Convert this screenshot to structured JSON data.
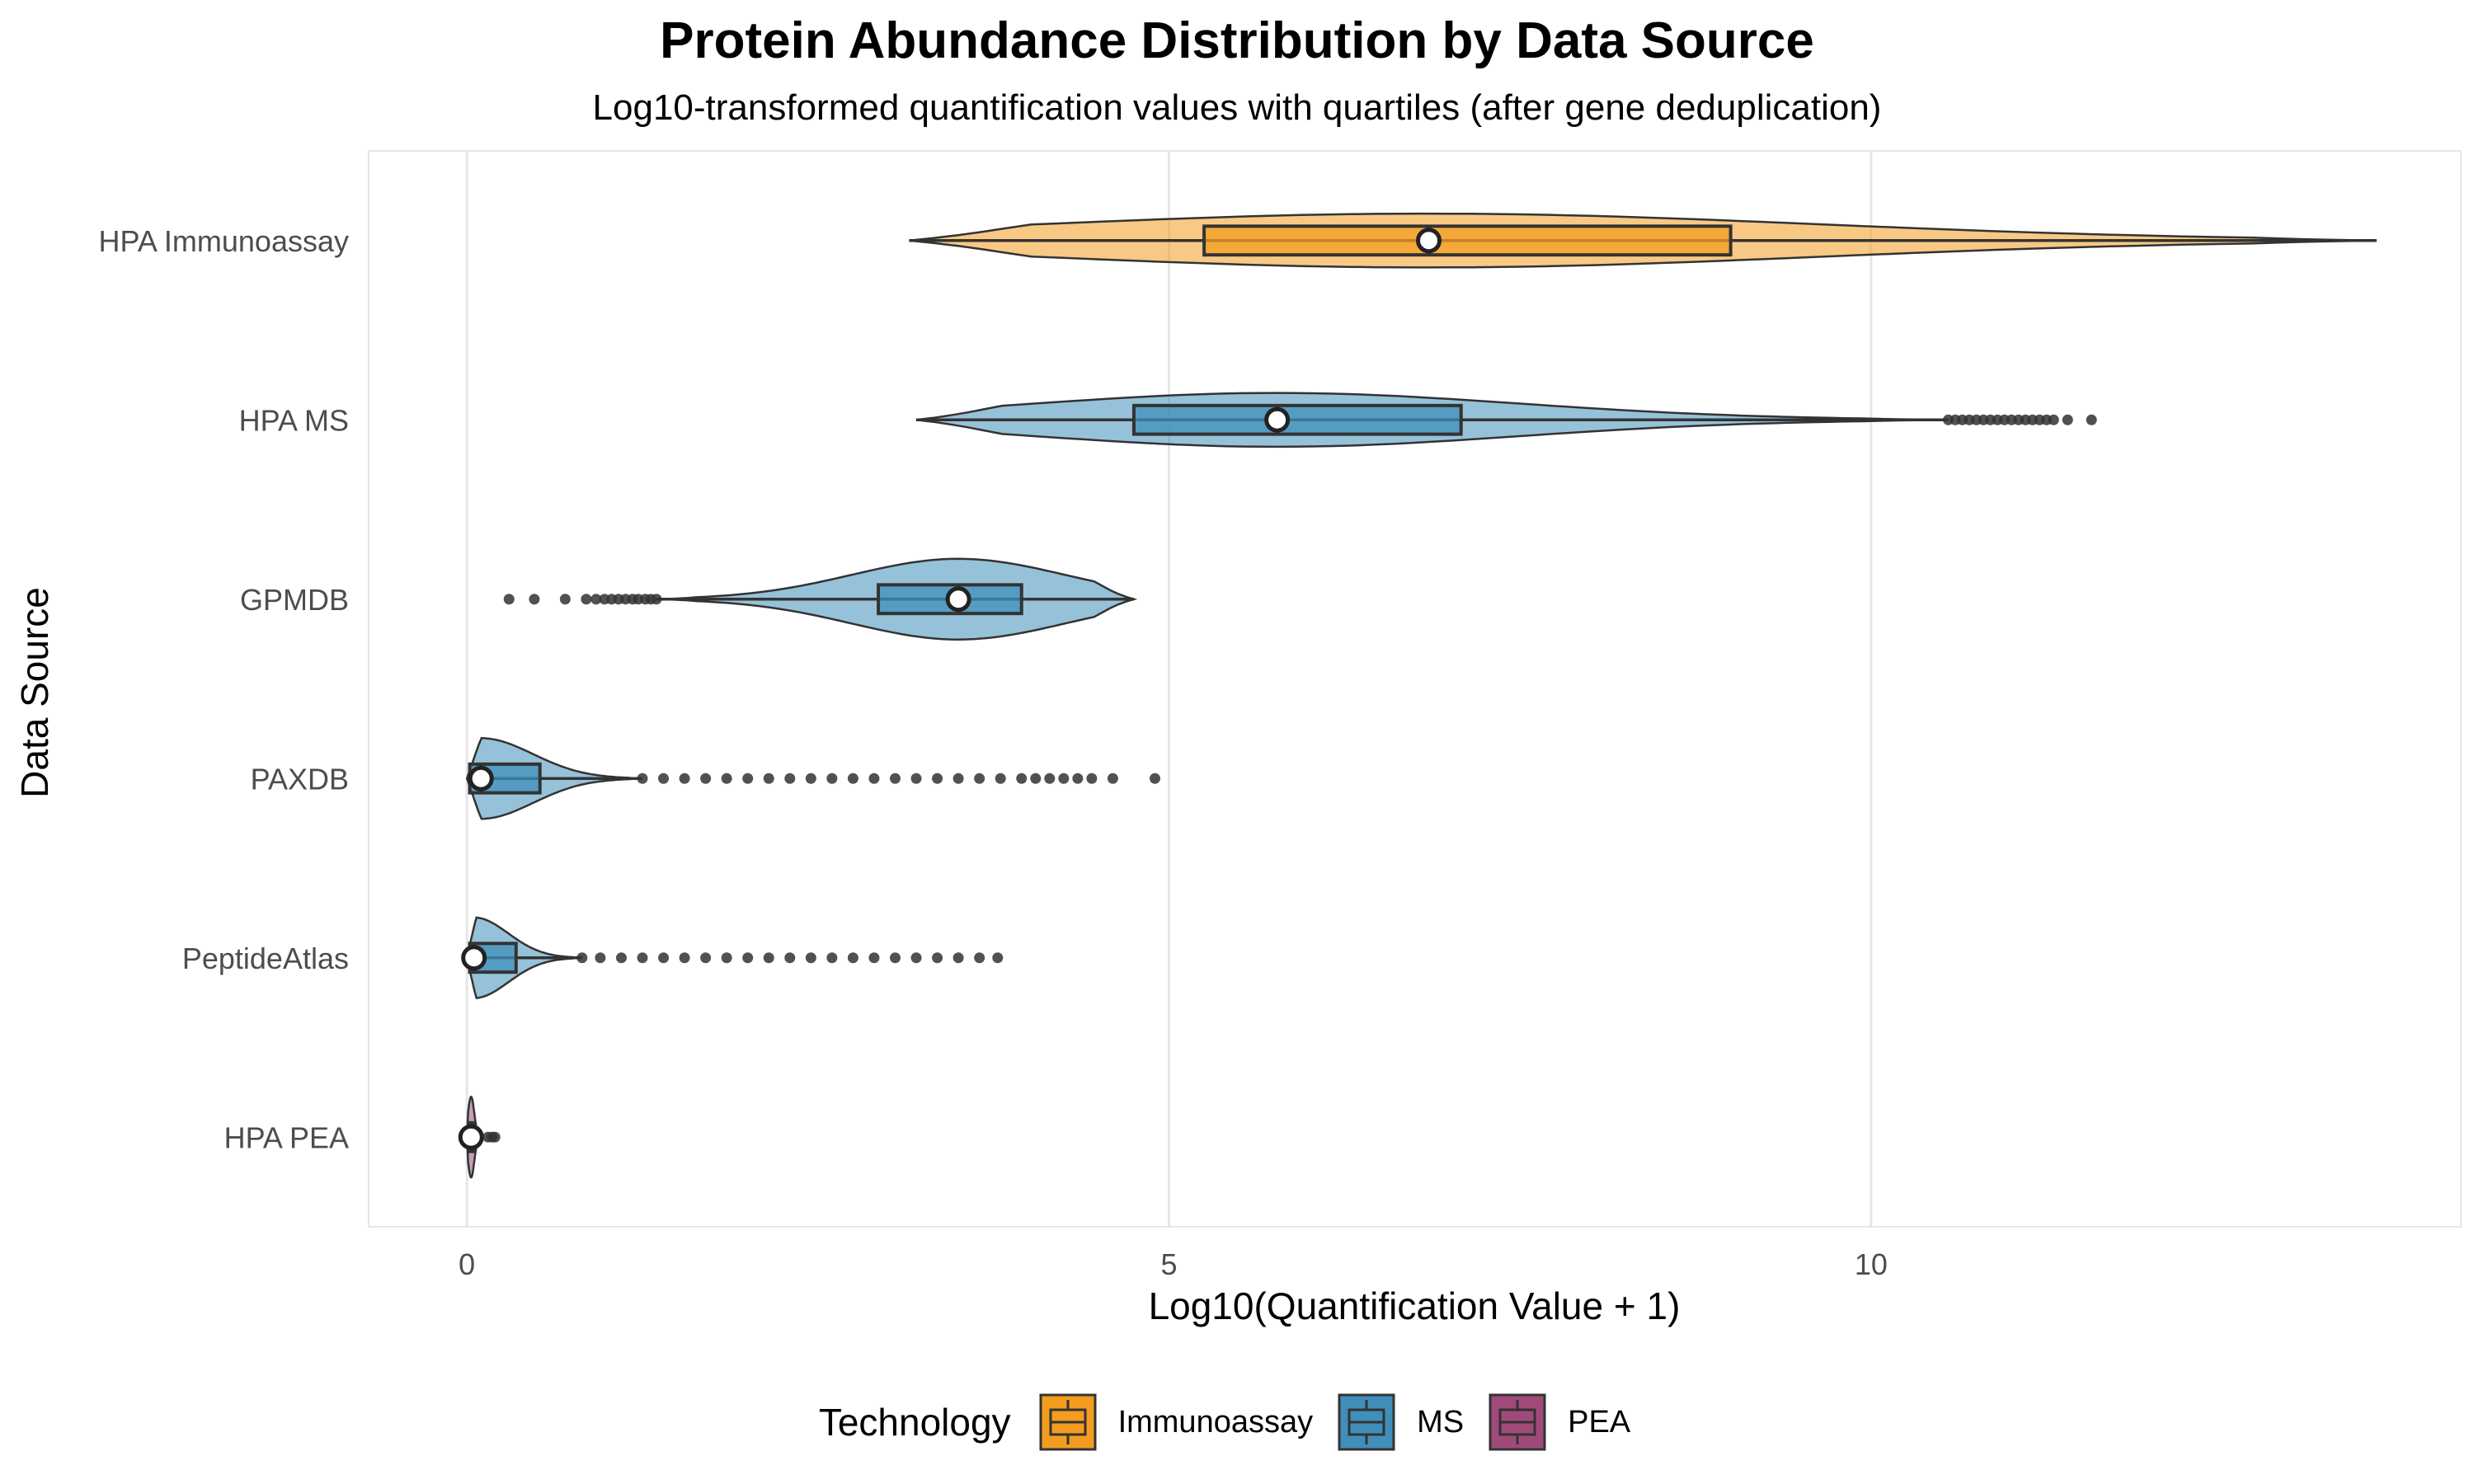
{
  "chart_data": {
    "type": "box",
    "title": "Protein Abundance Distribution by Data Source",
    "subtitle": "Log10-transformed quantification values with quartiles (after gene deduplication)",
    "xlabel": "Log10(Quantification Value + 1)",
    "ylabel": "Data Source",
    "xlim": [
      -0.7,
      14.2
    ],
    "xticks": [
      0,
      5,
      10
    ],
    "grid": true,
    "legend": {
      "title": "Technology",
      "position": "bottom",
      "items": [
        {
          "label": "Immunoassay",
          "color": "#f39c1f"
        },
        {
          "label": "MS",
          "color": "#3f8fba"
        },
        {
          "label": "PEA",
          "color": "#a04a7a"
        }
      ]
    },
    "series": [
      {
        "category": "HPA Immunoassay",
        "technology": "Immunoassay",
        "color": "#f39c1f",
        "whisker_low": 3.15,
        "q1": 5.25,
        "median": 6.85,
        "q3": 9.0,
        "whisker_high": 13.6,
        "violin_width": 0.3,
        "outliers": []
      },
      {
        "category": "HPA MS",
        "technology": "MS",
        "color": "#3f8fba",
        "whisker_low": 3.2,
        "q1": 4.75,
        "median": 5.77,
        "q3": 7.08,
        "whisker_high": 10.55,
        "violin_width": 0.3,
        "outliers": [
          10.55,
          10.6,
          10.65,
          10.7,
          10.75,
          10.8,
          10.85,
          10.9,
          10.95,
          11.0,
          11.05,
          11.1,
          11.15,
          11.2,
          11.25,
          11.3,
          11.4,
          11.57
        ]
      },
      {
        "category": "GPMDB",
        "technology": "MS",
        "color": "#3f8fba",
        "whisker_low": 1.35,
        "q1": 2.93,
        "median": 3.5,
        "q3": 3.95,
        "whisker_high": 4.75,
        "violin_width": 0.45,
        "outliers": [
          0.3,
          0.48,
          0.7,
          0.85,
          0.92,
          0.98,
          1.03,
          1.08,
          1.13,
          1.18,
          1.22,
          1.27,
          1.31,
          1.35
        ]
      },
      {
        "category": "PAXDB",
        "technology": "MS",
        "color": "#3f8fba",
        "whisker_low": 0.0,
        "q1": 0.02,
        "median": 0.1,
        "q3": 0.52,
        "whisker_high": 1.25,
        "violin_width": 0.45,
        "outliers": [
          1.25,
          1.4,
          1.55,
          1.7,
          1.85,
          2.0,
          2.15,
          2.3,
          2.45,
          2.6,
          2.75,
          2.9,
          3.05,
          3.2,
          3.35,
          3.5,
          3.65,
          3.8,
          3.95,
          4.05,
          4.15,
          4.25,
          4.35,
          4.45,
          4.6,
          4.9
        ]
      },
      {
        "category": "PeptideAtlas",
        "technology": "MS",
        "color": "#3f8fba",
        "whisker_low": 0.0,
        "q1": 0.02,
        "median": 0.05,
        "q3": 0.35,
        "whisker_high": 0.82,
        "violin_width": 0.45,
        "outliers": [
          0.82,
          0.95,
          1.1,
          1.25,
          1.4,
          1.55,
          1.7,
          1.85,
          2.0,
          2.15,
          2.3,
          2.45,
          2.6,
          2.75,
          2.9,
          3.05,
          3.2,
          3.35,
          3.5,
          3.65,
          3.78
        ]
      },
      {
        "category": "HPA PEA",
        "technology": "PEA",
        "color": "#a04a7a",
        "whisker_low": 0.0,
        "q1": 0.02,
        "median": 0.03,
        "q3": 0.05,
        "whisker_high": 0.1,
        "violin_width": 0.45,
        "outliers": [
          0.15,
          0.18,
          0.2
        ]
      }
    ]
  }
}
